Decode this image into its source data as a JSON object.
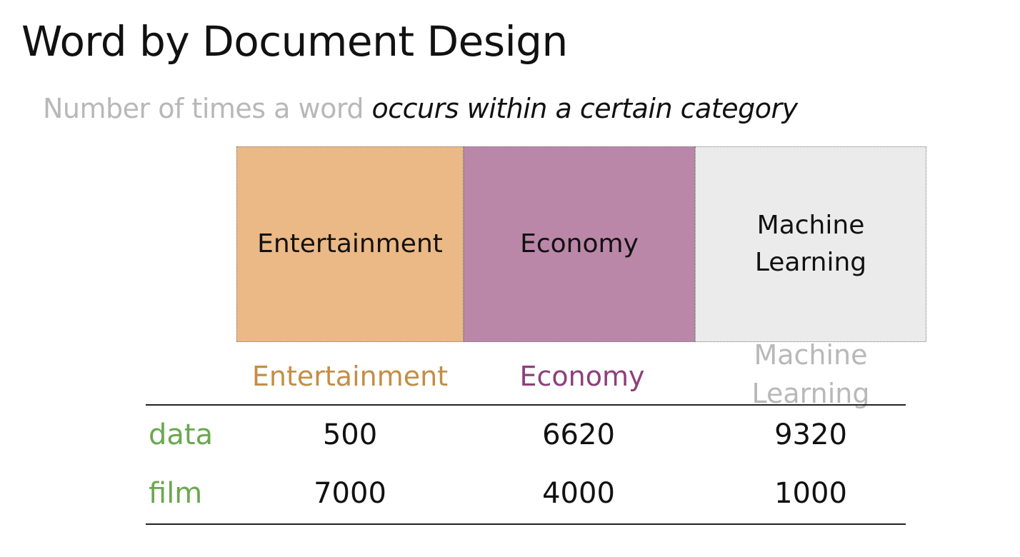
{
  "slide": {
    "title": "Word by Document Design",
    "subtitle_plain": "Number of times a word ",
    "subtitle_emphasis": "occurs within a certain category"
  },
  "categories": [
    {
      "line1": "Entertainment",
      "line2": "",
      "color": "#ebb986"
    },
    {
      "line1": "Economy",
      "line2": "",
      "color": "#bb87a9"
    },
    {
      "line1": "Machine",
      "line2": "Learning",
      "color": "#ebebeb"
    }
  ],
  "table": {
    "headers": [
      {
        "label": "Entertainment",
        "color": "#c48d45"
      },
      {
        "label": "Economy",
        "color": "#8e3f78"
      },
      {
        "label": "Machine Learning",
        "color": "#b8b8b8"
      }
    ],
    "row_label_color": "#6aa84f",
    "rows": [
      {
        "label": "data",
        "values": [
          "500",
          "6620",
          "9320"
        ]
      },
      {
        "label": "film",
        "values": [
          "7000",
          "4000",
          "1000"
        ]
      }
    ]
  }
}
